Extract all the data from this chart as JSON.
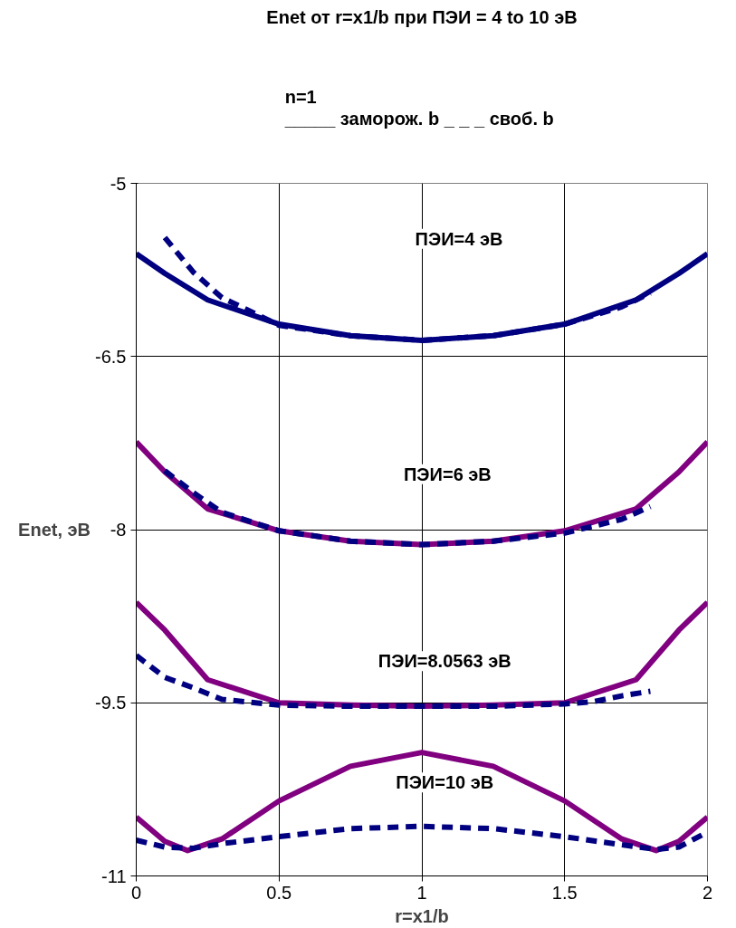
{
  "chart_data": {
    "type": "line",
    "title": "Enet от r=x1/b при ПЭИ = 4 to 10 эВ",
    "subtitle": "n=1\n_____ заморож. b  _ _ _ своб. b",
    "xlabel": "r=x1/b",
    "ylabel": "Enet, эВ",
    "xlim": [
      0,
      2
    ],
    "xticks": [
      0,
      0.5,
      1,
      1.5,
      2
    ],
    "ylim": [
      -11,
      -5
    ],
    "yticks": [
      -11,
      -9.5,
      -8,
      -6.5,
      -5
    ],
    "grid": true,
    "series": [
      {
        "color": "#000080",
        "line_style": "solid",
        "x": [
          0,
          0.1,
          0.25,
          0.5,
          0.75,
          1,
          1.25,
          1.5,
          1.75,
          1.9,
          2
        ],
        "values": [
          -5.61,
          -5.78,
          -6.01,
          -6.22,
          -6.32,
          -6.36,
          -6.32,
          -6.22,
          -6.01,
          -5.78,
          -5.61
        ]
      },
      {
        "color": "#800080",
        "line_style": "solid",
        "x": [
          0,
          0.1,
          0.25,
          0.5,
          0.75,
          1,
          1.25,
          1.5,
          1.75,
          1.9,
          2
        ],
        "values": [
          -7.24,
          -7.5,
          -7.82,
          -8.01,
          -8.1,
          -8.13,
          -8.1,
          -8.01,
          -7.82,
          -7.5,
          -7.24
        ]
      },
      {
        "color": "#800080",
        "line_style": "solid",
        "x": [
          0,
          0.1,
          0.25,
          0.5,
          0.75,
          1,
          1.25,
          1.5,
          1.75,
          1.9,
          2
        ],
        "values": [
          -8.63,
          -8.87,
          -9.3,
          -9.5,
          -9.52,
          -9.53,
          -9.52,
          -9.5,
          -9.3,
          -8.87,
          -8.63
        ]
      },
      {
        "color": "#800080",
        "line_style": "solid",
        "x": [
          0,
          0.1,
          0.18,
          0.3,
          0.5,
          0.75,
          1,
          1.25,
          1.5,
          1.7,
          1.82,
          1.9,
          2
        ],
        "values": [
          -10.49,
          -10.7,
          -10.78,
          -10.68,
          -10.35,
          -10.05,
          -9.93,
          -10.05,
          -10.35,
          -10.68,
          -10.78,
          -10.7,
          -10.49
        ]
      },
      {
        "color": "#000080",
        "line_style": "dashed",
        "x": [
          0.1,
          0.2,
          0.3,
          0.5,
          0.75,
          1,
          1.25,
          1.5,
          1.7,
          1.8
        ],
        "values": [
          -5.47,
          -5.77,
          -5.99,
          -6.23,
          -6.32,
          -6.36,
          -6.32,
          -6.22,
          -6.07,
          -5.95
        ]
      },
      {
        "color": "#000080",
        "line_style": "dashed",
        "x": [
          0.1,
          0.2,
          0.3,
          0.5,
          0.75,
          1,
          1.25,
          1.5,
          1.6,
          1.7,
          1.8
        ],
        "values": [
          -7.49,
          -7.68,
          -7.85,
          -8.01,
          -8.1,
          -8.13,
          -8.1,
          -8.03,
          -7.97,
          -7.91,
          -7.8
        ]
      },
      {
        "color": "#000080",
        "line_style": "dashed",
        "x": [
          0,
          0.1,
          0.2,
          0.3,
          0.5,
          0.75,
          1,
          1.25,
          1.5,
          1.6,
          1.7,
          1.8
        ],
        "values": [
          -9.09,
          -9.28,
          -9.37,
          -9.47,
          -9.52,
          -9.53,
          -9.53,
          -9.53,
          -9.51,
          -9.49,
          -9.44,
          -9.4
        ]
      },
      {
        "color": "#000080",
        "line_style": "dashed",
        "x": [
          0,
          0.1,
          0.2,
          0.3,
          0.5,
          0.75,
          1,
          1.25,
          1.5,
          1.7,
          1.82,
          1.9,
          2
        ],
        "values": [
          -10.69,
          -10.75,
          -10.76,
          -10.72,
          -10.66,
          -10.59,
          -10.57,
          -10.59,
          -10.66,
          -10.73,
          -10.77,
          -10.75,
          -10.62
        ]
      }
    ],
    "annotations": [
      "ПЭИ=4 эВ",
      "ПЭИ=6 эВ",
      "ПЭИ=8.0563 эВ",
      "ПЭИ=10 эВ"
    ]
  }
}
